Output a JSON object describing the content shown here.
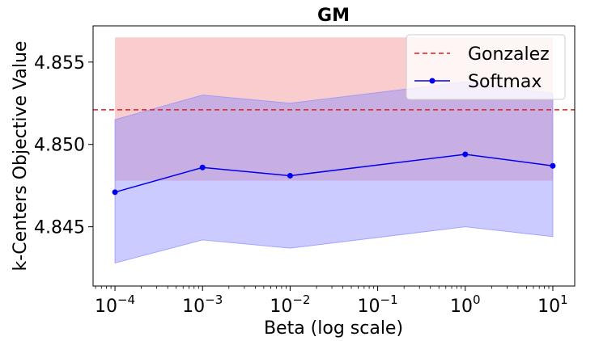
{
  "chart_data": {
    "type": "line",
    "title": "GM",
    "xlabel": "Beta (log scale)",
    "ylabel": "k-Centers Objective Value",
    "xscale": "log",
    "xlim_log10": [
      -4.25,
      1.25
    ],
    "ylim": [
      4.8414,
      4.8572
    ],
    "x_ticks": [
      {
        "exp": -4,
        "base": "10",
        "sup": "−4"
      },
      {
        "exp": -3,
        "base": "10",
        "sup": "−3"
      },
      {
        "exp": -2,
        "base": "10",
        "sup": "−2"
      },
      {
        "exp": -1,
        "base": "10",
        "sup": "−1"
      },
      {
        "exp": 0,
        "base": "10",
        "sup": "0"
      },
      {
        "exp": 1,
        "base": "10",
        "sup": "1"
      }
    ],
    "y_ticks": [
      {
        "value": 4.845,
        "label": "4.845"
      },
      {
        "value": 4.85,
        "label": "4.850"
      },
      {
        "value": 4.855,
        "label": "4.855"
      }
    ],
    "series": [
      {
        "name": "Gonzalez",
        "kind": "hline",
        "value": 4.8521,
        "band_lower": 4.8478,
        "band_upper": 4.8565,
        "color": "#e41a1c",
        "band_color": "#f4a4a4"
      },
      {
        "name": "Softmax",
        "kind": "line",
        "x": [
          0.0001,
          0.001,
          0.01,
          1,
          10
        ],
        "values": [
          4.8471,
          4.8486,
          4.8481,
          4.8494,
          4.8487
        ],
        "lower": [
          4.8428,
          4.8442,
          4.8437,
          4.845,
          4.8444
        ],
        "upper": [
          4.8515,
          4.853,
          4.8525,
          4.8538,
          4.8531
        ],
        "color": "#0000ee",
        "band_color": "#8c8cff"
      }
    ],
    "legend_position": "top-right"
  }
}
